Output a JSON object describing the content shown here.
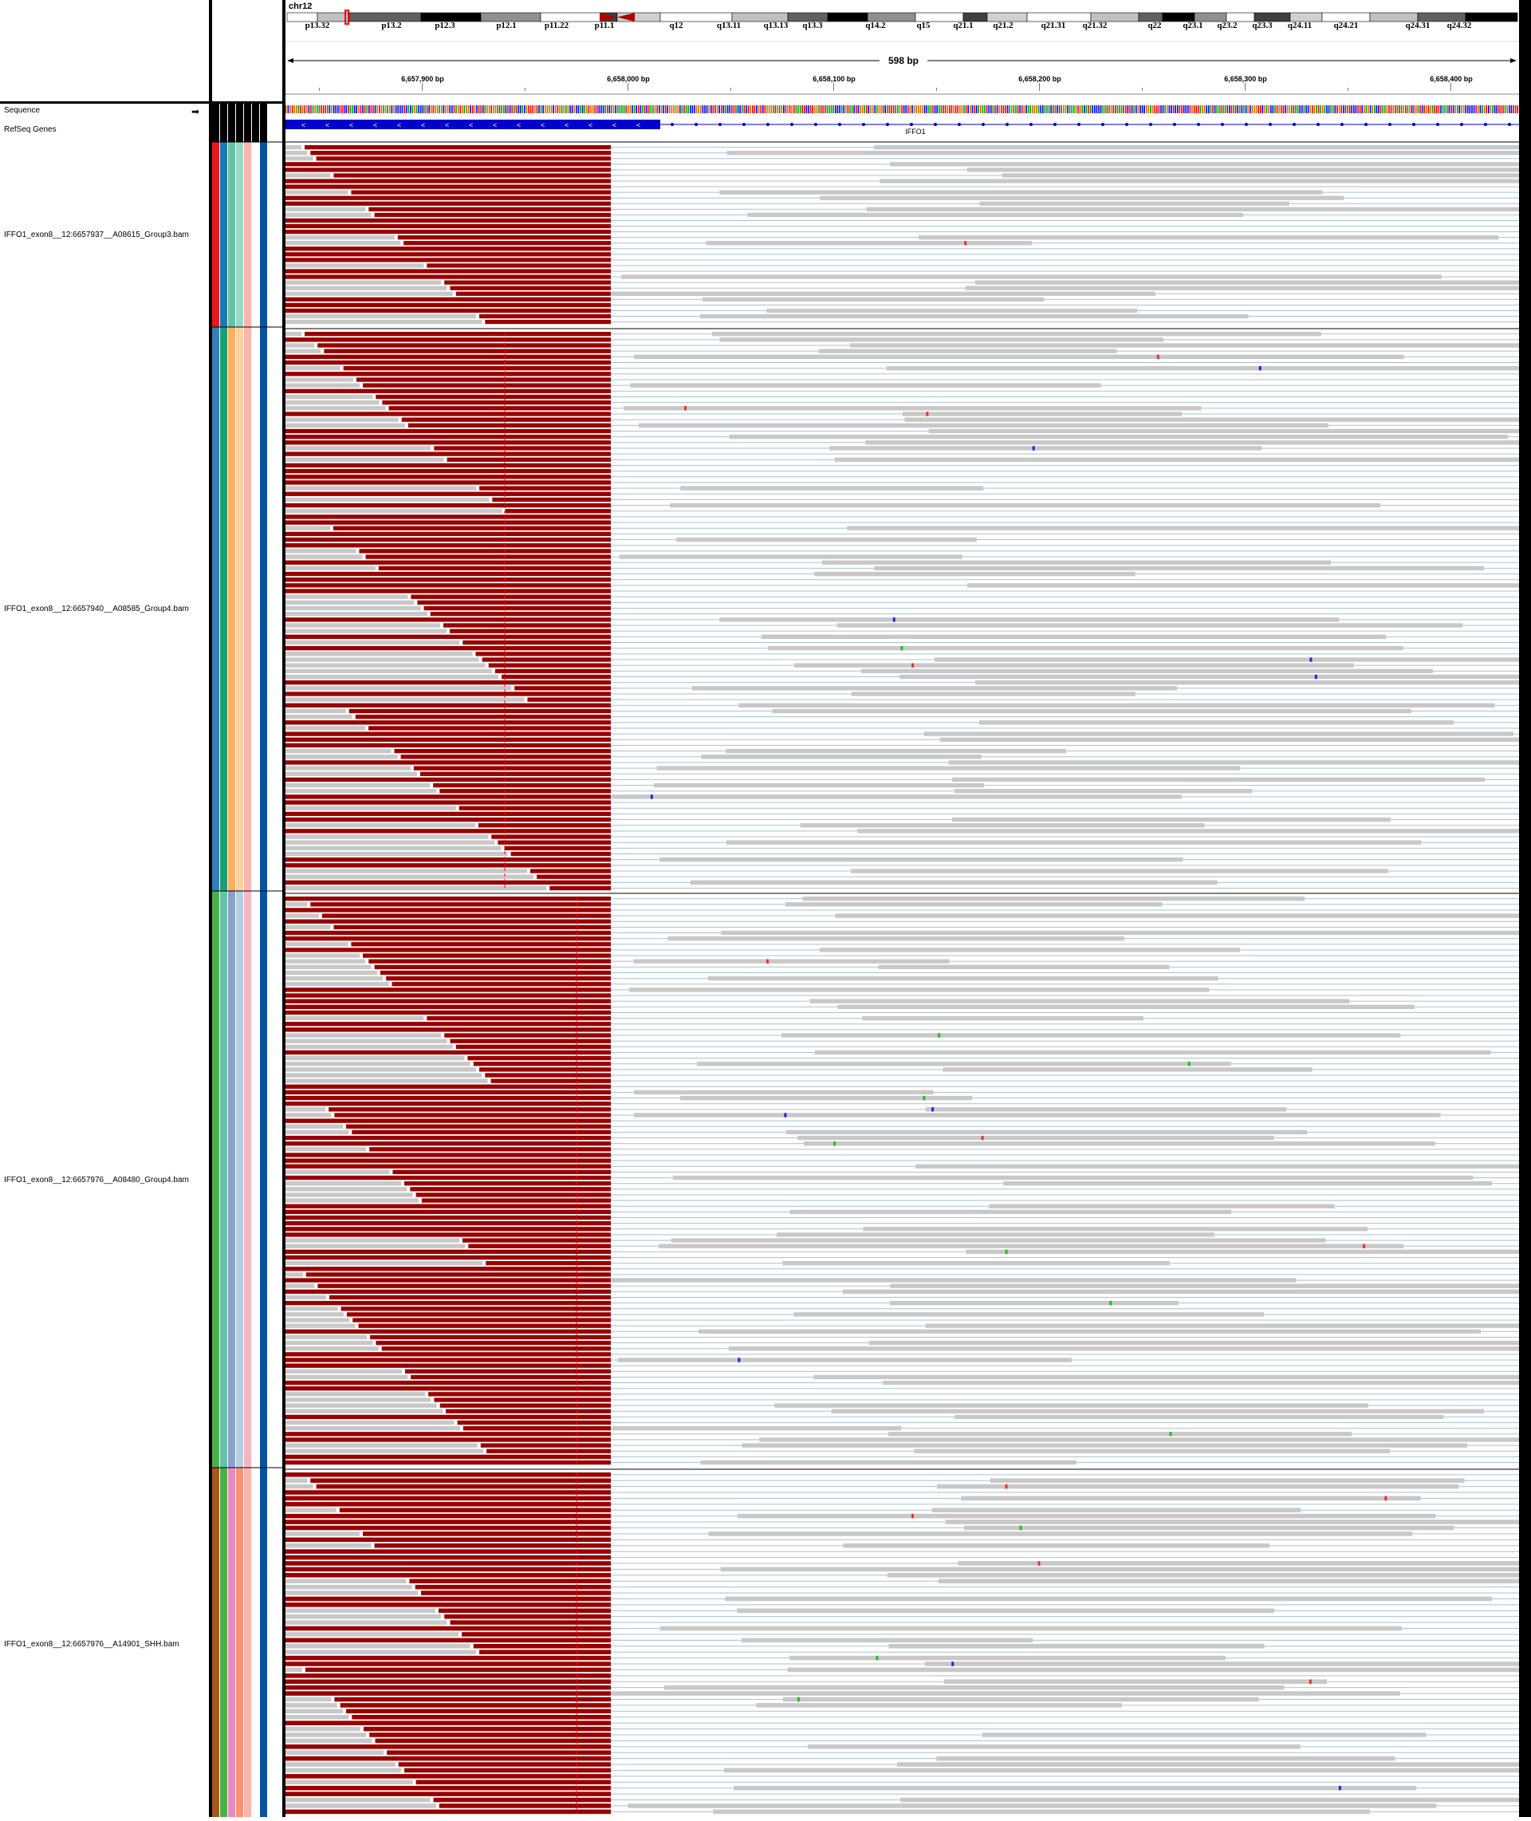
{
  "header": {
    "chromosome": "chr12",
    "span_label": "598 bp",
    "cytobands": [
      "p13.32",
      "p13.2",
      "p12.3",
      "p12.1",
      "p11.22",
      "p11.1",
      "q12",
      "q13.11",
      "q13.13",
      "q13.3",
      "q14.2",
      "q15",
      "q21.1",
      "q21.2",
      "q21.31",
      "q21.32",
      "q22",
      "q23.1",
      "q23.2",
      "q23.3",
      "q24.11",
      "q24.21",
      "q24.31",
      "q24.32"
    ],
    "ruler_ticks": [
      "6,657,900 bp",
      "6,658,000 bp",
      "6,658,100 bp",
      "6,658,200 bp",
      "6,658,300 bp",
      "6,658,400 bp"
    ]
  },
  "tracks": {
    "sequence_label": "Sequence",
    "refseq_label": "RefSeq Genes",
    "gene_name": "IFFO1",
    "bams": [
      {
        "name": "IFFO1_exon8__12:6657937__A08615_Group3.bam",
        "colors": [
          "#e41a1c",
          "#1f78b4",
          "#66c2a5",
          "#99d8c9",
          "#fbb4ae",
          "#ffffff",
          "#08519c"
        ]
      },
      {
        "name": "IFFO1_exon8__12:6657940__A08585_Group4.bam",
        "colors": [
          "#377eb8",
          "#1b9e77",
          "#fdae61",
          "#fdd0a2",
          "#fbb4ae",
          "#ffffff",
          "#08519c"
        ]
      },
      {
        "name": "IFFO1_exon8__12:6657976__A08480_Group4.bam",
        "colors": [
          "#4daf4a",
          "#66c2a5",
          "#8da0cb",
          "#b3cde3",
          "#f4b6c2",
          "#ffffff",
          "#08519c"
        ]
      },
      {
        "name": "IFFO1_exon8__12:6657976__A14901_SHH.bam",
        "colors": [
          "#a6561d",
          "#4daf4a",
          "#e78ac3",
          "#fc9272",
          "#fbb4ae",
          "#ffffff",
          "#08519c"
        ]
      }
    ]
  },
  "colors": {
    "softclip": "#990000",
    "read": "#c8c8c8",
    "insert_line": "#aac0d0",
    "gene": "#0000cc",
    "mismatch_red": "#ff2a2a",
    "mismatch_blue": "#2020ff",
    "mismatch_green": "#22bb22"
  }
}
